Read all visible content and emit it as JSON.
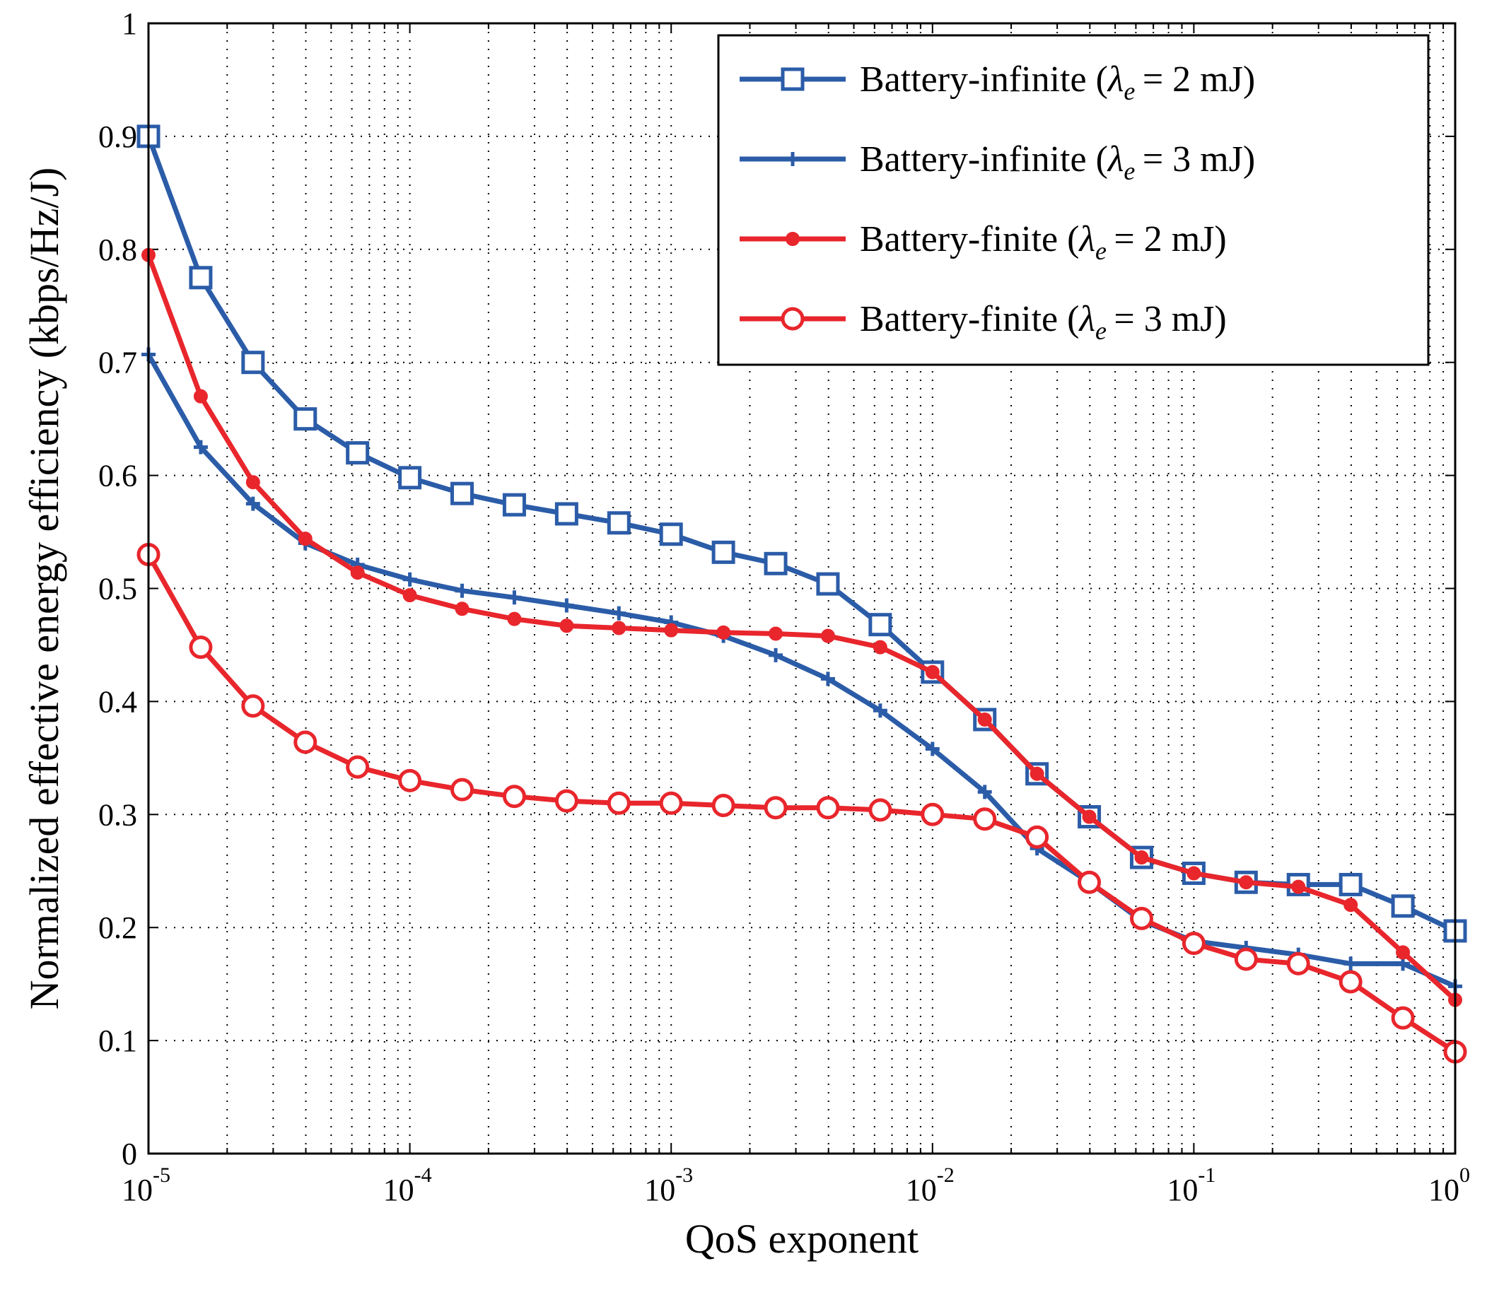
{
  "chart_data": {
    "type": "line",
    "xscale": "log",
    "xlabel": "QoS exponent",
    "ylabel": "Normalized effective energy efficiency (kbps/Hz/J)",
    "xlim": [
      1e-05,
      1
    ],
    "ylim": [
      0,
      1
    ],
    "x_ticks": [
      {
        "base": "10",
        "exp": "-5",
        "value": 1e-05
      },
      {
        "base": "10",
        "exp": "-4",
        "value": 0.0001
      },
      {
        "base": "10",
        "exp": "-3",
        "value": 0.001
      },
      {
        "base": "10",
        "exp": "-2",
        "value": 0.01
      },
      {
        "base": "10",
        "exp": "-1",
        "value": 0.1
      },
      {
        "base": "10",
        "exp": "0",
        "value": 1
      }
    ],
    "y_ticks": [
      {
        "label": "0",
        "value": 0
      },
      {
        "label": "0.1",
        "value": 0.1
      },
      {
        "label": "0.2",
        "value": 0.2
      },
      {
        "label": "0.3",
        "value": 0.3
      },
      {
        "label": "0.4",
        "value": 0.4
      },
      {
        "label": "0.5",
        "value": 0.5
      },
      {
        "label": "0.6",
        "value": 0.6
      },
      {
        "label": "0.7",
        "value": 0.7
      },
      {
        "label": "0.8",
        "value": 0.8
      },
      {
        "label": "0.9",
        "value": 0.9
      },
      {
        "label": "1",
        "value": 1
      }
    ],
    "grid": true,
    "legend_position": "top-right",
    "x_exponents": [
      -5,
      -4.8,
      -4.6,
      -4.4,
      -4.2,
      -4,
      -3.8,
      -3.6,
      -3.4,
      -3.2,
      -3,
      -2.8,
      -2.6,
      -2.4,
      -2.2,
      -2,
      -1.8,
      -1.6,
      -1.4,
      -1.2,
      -1,
      -0.8,
      -0.6,
      -0.4,
      -0.2,
      0
    ],
    "series": [
      {
        "name": "Battery-infinite",
        "param_symbol": "λ",
        "param_sub": "e",
        "param_value": "= 2 mJ",
        "color": "#2b5ca8",
        "marker": "square",
        "values": [
          0.9,
          0.775,
          0.7,
          0.65,
          0.62,
          0.598,
          0.584,
          0.574,
          0.566,
          0.558,
          0.548,
          0.532,
          0.522,
          0.504,
          0.468,
          0.426,
          0.384,
          0.336,
          0.298,
          0.262,
          0.248,
          0.24,
          0.238,
          0.238,
          0.219,
          0.197
        ]
      },
      {
        "name": "Battery-infinite",
        "param_symbol": "λ",
        "param_sub": "e",
        "param_value": "= 3 mJ",
        "color": "#2b5ca8",
        "marker": "plus",
        "values": [
          0.707,
          0.625,
          0.575,
          0.54,
          0.521,
          0.508,
          0.498,
          0.492,
          0.485,
          0.478,
          0.47,
          0.458,
          0.441,
          0.42,
          0.392,
          0.358,
          0.32,
          0.27,
          0.24,
          0.206,
          0.188,
          0.182,
          0.176,
          0.168,
          0.168,
          0.148
        ]
      },
      {
        "name": "Battery-finite",
        "param_symbol": "λ",
        "param_sub": "e",
        "param_value": "= 2 mJ",
        "color": "#e8262c",
        "marker": "dot",
        "values": [
          0.795,
          0.67,
          0.594,
          0.544,
          0.514,
          0.494,
          0.482,
          0.473,
          0.467,
          0.465,
          0.463,
          0.461,
          0.46,
          0.458,
          0.448,
          0.426,
          0.384,
          0.336,
          0.298,
          0.262,
          0.248,
          0.24,
          0.236,
          0.22,
          0.178,
          0.136
        ]
      },
      {
        "name": "Battery-finite",
        "param_symbol": "λ",
        "param_sub": "e",
        "param_value": "= 3 mJ",
        "color": "#e8262c",
        "marker": "circle",
        "values": [
          0.53,
          0.448,
          0.396,
          0.364,
          0.342,
          0.33,
          0.322,
          0.316,
          0.312,
          0.31,
          0.31,
          0.308,
          0.306,
          0.306,
          0.304,
          0.3,
          0.296,
          0.28,
          0.24,
          0.208,
          0.186,
          0.172,
          0.168,
          0.152,
          0.12,
          0.09
        ]
      }
    ]
  }
}
